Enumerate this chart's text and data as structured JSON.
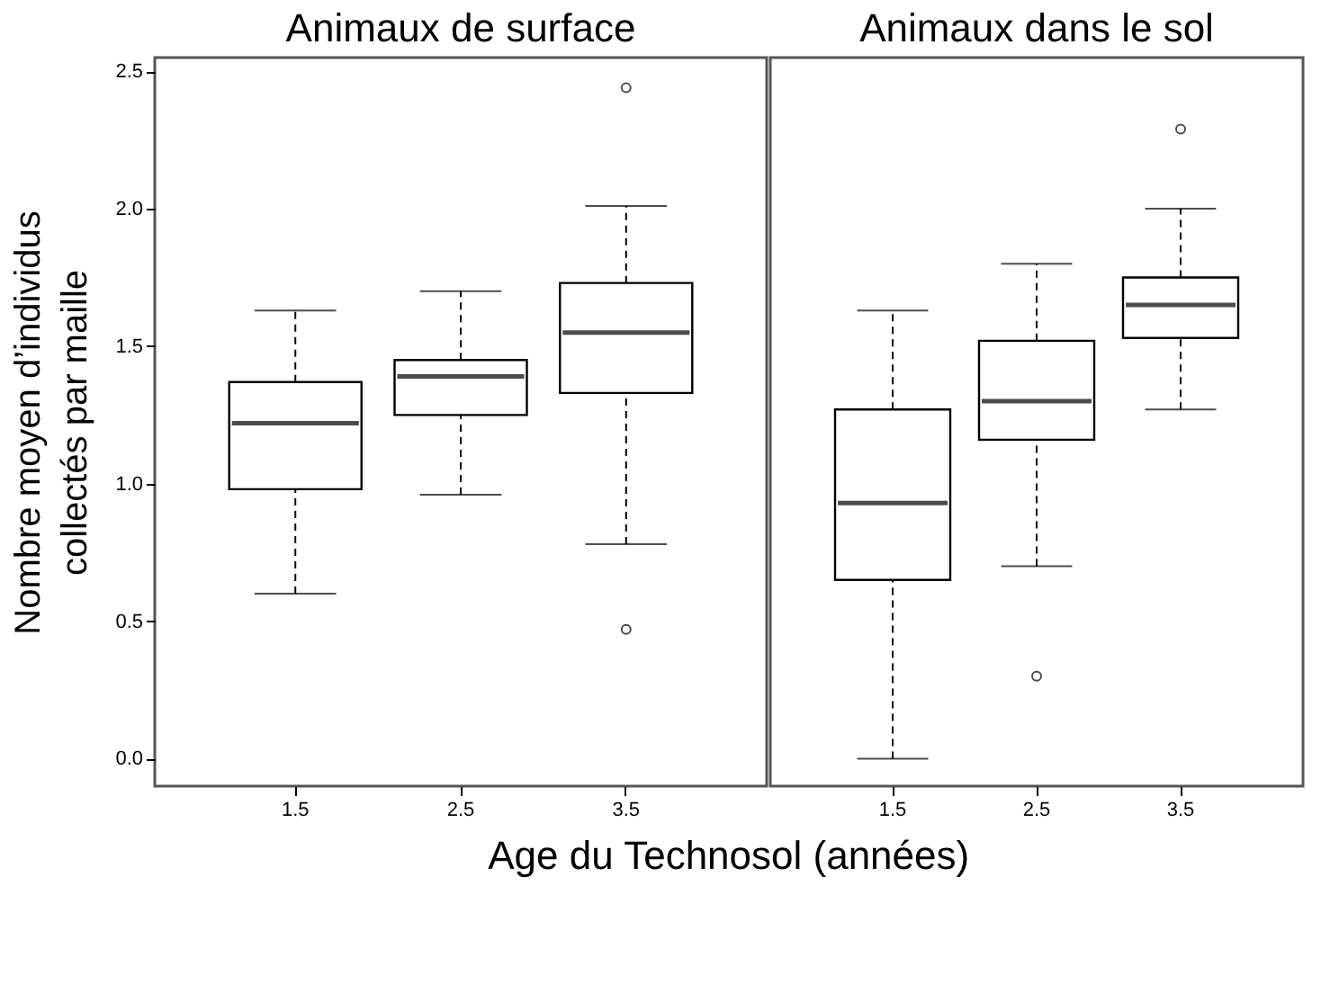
{
  "chart_data": [
    {
      "type": "box",
      "title": "Animaux de surface",
      "xlabel": "Age du Technosol (années)",
      "ylabel": "Nombre moyen d’individus collectés par maille",
      "categories": [
        "1.5",
        "2.5",
        "3.5"
      ],
      "boxes": [
        {
          "low": 0.6,
          "q1": 0.98,
          "median": 1.22,
          "q3": 1.37,
          "high": 1.63
        },
        {
          "low": 0.96,
          "q1": 1.25,
          "median": 1.39,
          "q3": 1.45,
          "high": 1.7
        },
        {
          "low": 0.78,
          "q1": 1.33,
          "median": 1.55,
          "q3": 1.73,
          "high": 2.01,
          "outliers": [
            2.44,
            0.47
          ]
        }
      ],
      "ylim": [
        -0.1,
        2.55
      ],
      "yticks": [
        {
          "value": 0,
          "label": "0.0"
        },
        {
          "value": 0.5,
          "label": "0.5"
        },
        {
          "value": 1,
          "label": "1.0"
        },
        {
          "value": 1.5,
          "label": "1.5"
        },
        {
          "value": 2,
          "label": "2.0"
        },
        {
          "value": 2.5,
          "label": "2.5"
        }
      ],
      "grid": false
    },
    {
      "type": "box",
      "title": "Animaux dans le sol",
      "categories": [
        "1.5",
        "2.5",
        "3.5"
      ],
      "boxes": [
        {
          "low": 0.0,
          "q1": 0.65,
          "median": 0.93,
          "q3": 1.27,
          "high": 1.63
        },
        {
          "low": 0.7,
          "q1": 1.16,
          "median": 1.3,
          "q3": 1.52,
          "high": 1.8,
          "outliers": [
            0.3
          ]
        },
        {
          "low": 1.27,
          "q1": 1.53,
          "median": 1.65,
          "q3": 1.75,
          "high": 2.0,
          "outliers": [
            2.29
          ]
        }
      ],
      "ylim": [
        -0.1,
        2.55
      ],
      "tick_labels": "x",
      "grid": false
    }
  ]
}
